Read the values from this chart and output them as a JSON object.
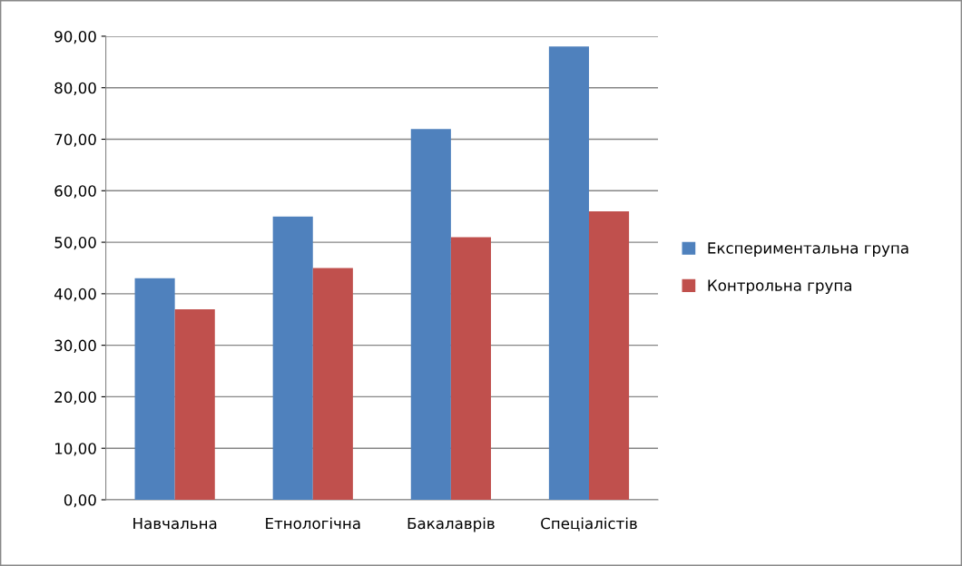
{
  "chart_data": {
    "type": "bar",
    "categories": [
      "Навчальна",
      "Етнологічна",
      "Бакалаврів",
      "Спеціалістів"
    ],
    "series": [
      {
        "name": "Експериментальна група",
        "color": "#4f81bd",
        "values": [
          43,
          55,
          72,
          88
        ]
      },
      {
        "name": "Контрольна група",
        "color": "#c0504d",
        "values": [
          37,
          45,
          51,
          56
        ]
      }
    ],
    "ylim": [
      0,
      90
    ],
    "yticks": [
      {
        "value": 0,
        "label": "0,00"
      },
      {
        "value": 10,
        "label": "10,00"
      },
      {
        "value": 20,
        "label": "20,00"
      },
      {
        "value": 30,
        "label": "30,00"
      },
      {
        "value": 40,
        "label": "40,00"
      },
      {
        "value": 50,
        "label": "50,00"
      },
      {
        "value": 60,
        "label": "60,00"
      },
      {
        "value": 70,
        "label": "70,00"
      },
      {
        "value": 80,
        "label": "80,00"
      },
      {
        "value": 90,
        "label": "90,00"
      }
    ],
    "grid": "y",
    "legend": "right"
  }
}
